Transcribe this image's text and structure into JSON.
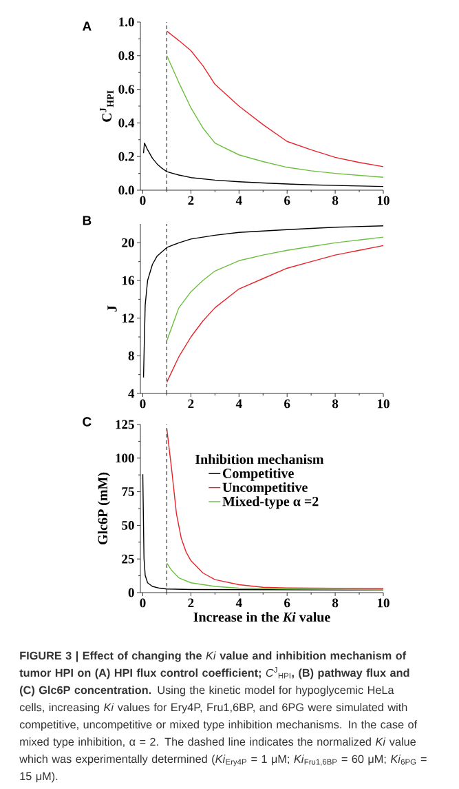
{
  "chart_data": [
    {
      "type": "line",
      "title": "A",
      "ylabel": "C$^{J}$$_{HPI}$",
      "xlim": [
        -0.1,
        10
      ],
      "ylim": [
        0,
        1.0
      ],
      "xticks": [
        0,
        2,
        4,
        6,
        8,
        10
      ],
      "yticks": [
        {
          "value": 0,
          "label": "0.0"
        },
        0.2,
        0.4,
        0.6,
        0.8,
        {
          "value": 1,
          "label": "1.0"
        }
      ],
      "ref_lines": [
        {
          "axis": "x",
          "value": 1,
          "color": "#000000",
          "line_style": "dashed"
        }
      ],
      "series": [
        {
          "color": "#000000",
          "x": [
            0.03,
            0.07,
            0.2,
            0.4,
            0.6,
            0.8,
            1,
            1.5,
            2,
            3,
            4,
            5,
            6,
            7,
            8,
            9,
            10
          ],
          "values": [
            0.22,
            0.28,
            0.24,
            0.19,
            0.155,
            0.13,
            0.11,
            0.09,
            0.075,
            0.06,
            0.05,
            0.043,
            0.037,
            0.032,
            0.028,
            0.025,
            0.022
          ]
        },
        {
          "color": "#e8242a",
          "x": [
            1,
            1.5,
            2,
            2.5,
            3,
            4,
            5,
            6,
            7,
            8,
            9,
            10
          ],
          "values": [
            0.946,
            0.89,
            0.83,
            0.74,
            0.63,
            0.5,
            0.39,
            0.29,
            0.24,
            0.195,
            0.165,
            0.14
          ]
        },
        {
          "color": "#6cbf3f",
          "x": [
            1,
            1.5,
            2,
            2.5,
            3,
            4,
            5,
            6,
            7,
            8,
            9,
            10
          ],
          "values": [
            0.8,
            0.64,
            0.49,
            0.37,
            0.28,
            0.21,
            0.17,
            0.136,
            0.115,
            0.1,
            0.088,
            0.077
          ]
        }
      ]
    },
    {
      "type": "line",
      "title": "B",
      "ylabel": "J",
      "xlim": [
        -0.1,
        10
      ],
      "ylim": [
        4,
        22
      ],
      "xticks": [
        0,
        2,
        4,
        6,
        8,
        10
      ],
      "yticks": [
        4,
        8,
        12,
        16,
        20
      ],
      "ref_lines": [
        {
          "axis": "x",
          "value": 1,
          "color": "#000000",
          "line_style": "dashed"
        }
      ],
      "series": [
        {
          "color": "#000000",
          "x": [
            0.03,
            0.1,
            0.2,
            0.4,
            0.6,
            1,
            1.5,
            2,
            3,
            4,
            6,
            8,
            10
          ],
          "values": [
            5.7,
            13.4,
            16.0,
            17.7,
            18.6,
            19.5,
            20.0,
            20.4,
            20.8,
            21.1,
            21.4,
            21.65,
            21.8
          ]
        },
        {
          "color": "#e8242a",
          "x": [
            1,
            1.5,
            2,
            2.5,
            3,
            4,
            5,
            6,
            7,
            8,
            9,
            10
          ],
          "values": [
            5.2,
            7.9,
            10.0,
            11.7,
            13.1,
            15.1,
            16.2,
            17.3,
            18.0,
            18.7,
            19.2,
            19.7
          ]
        },
        {
          "color": "#6cbf3f",
          "x": [
            1,
            1.5,
            2,
            2.5,
            3,
            4,
            5,
            6,
            7,
            8,
            9,
            10
          ],
          "values": [
            9.6,
            13.1,
            14.8,
            16.0,
            17.0,
            18.1,
            18.7,
            19.2,
            19.6,
            20.0,
            20.3,
            20.6
          ]
        }
      ]
    },
    {
      "type": "line",
      "title": "C",
      "xlabel": "Increase in the *Ki* value",
      "ylabel": "Glc6P (mM)",
      "legend_title": "Inhibition mechanism",
      "legend": "top",
      "xlim": [
        -0.1,
        10
      ],
      "ylim": [
        0,
        125
      ],
      "xticks": [
        0,
        2,
        4,
        6,
        8,
        10
      ],
      "yticks": [
        0,
        25,
        50,
        75,
        100,
        125
      ],
      "ref_lines": [
        {
          "axis": "x",
          "value": 1,
          "color": "#000000",
          "line_style": "dashed"
        }
      ],
      "series": [
        {
          "name": "Competitive",
          "color": "#000000",
          "x": [
            0,
            0.05,
            0.1,
            0.2,
            0.4,
            0.7,
            1,
            2,
            5,
            10
          ],
          "values": [
            88,
            25.6,
            12.8,
            7.3,
            4.6,
            3.3,
            2.7,
            2.3,
            2.2,
            2.0
          ]
        },
        {
          "name": "Uncompetitive",
          "color": "#e8242a",
          "x": [
            1,
            1.2,
            1.4,
            1.6,
            1.8,
            2,
            2.5,
            3,
            4,
            5,
            6,
            8,
            10
          ],
          "values": [
            121.7,
            91.5,
            58.6,
            40.3,
            30.2,
            23.8,
            14.6,
            9.7,
            5.9,
            4.0,
            3.5,
            3.2,
            3.1
          ]
        },
        {
          "name": "Mixed-type α =2",
          "color": "#6cbf3f",
          "x": [
            1,
            1.2,
            1.5,
            2,
            3,
            4,
            6,
            10
          ],
          "values": [
            22.0,
            16.5,
            11.0,
            7.3,
            4.6,
            3.3,
            2.7,
            2.2
          ]
        }
      ],
      "annotations": [
        "**FIGURE 3 | Effect of changing the** *Ki* **value and inhibition mechanism of tumor HPI on (A) HPI flux control coefficient;** *C*$^{J}$$_{HPI}$**, (B) pathway flux and (C) Glc6P concentration.** Using the kinetic model for hypoglycemic HeLa cells, increasing *Ki* values for Ery4P, Fru1,6BP, and 6PG were simulated with competitive, uncompetitive or mixed type inhibition mechanisms. In the case of mixed type inhibition, α = 2. The dashed line indicates the normalized *Ki* value which was experimentally determined (*Ki*$_{Ery4P}$ = 1 μM; *Ki*$_{Fru1,6BP}$ = 60 μM; *Ki*$_{6PG}$ = 15 μM)."
      ]
    }
  ]
}
